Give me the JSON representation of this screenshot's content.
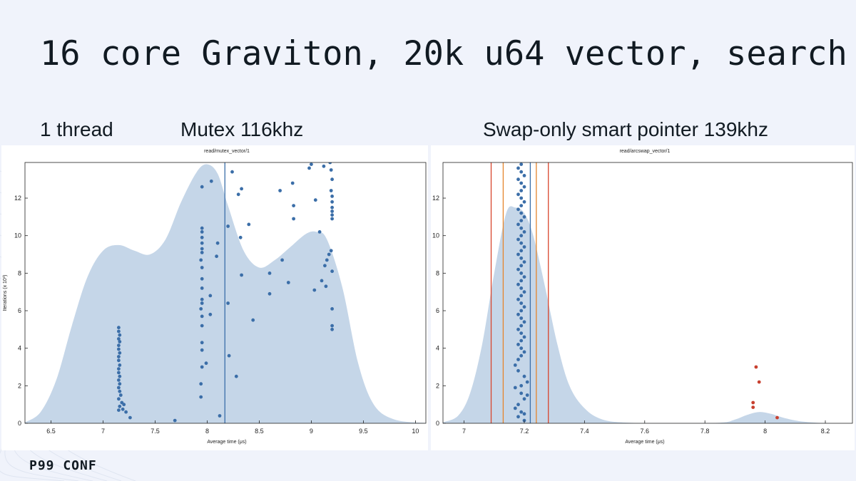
{
  "slide": {
    "title": "16 core Graviton, 20k u64 vector, search",
    "label_threads": "1 thread",
    "label_mutex": "Mutex 116khz",
    "label_swap": "Swap-only smart pointer 139khz",
    "logo": "P99 CONF"
  },
  "colors": {
    "kde_fill": "#c5d6e8",
    "point": "#3b6ea8",
    "outlier": "#c8402f",
    "mean_line": "#3b6ea8",
    "severe_fence": "#d9442c",
    "mild_fence": "#e5852c"
  },
  "chart_data": [
    {
      "type": "scatter",
      "title": "read/mutex_vector/1",
      "xlabel": "Average time (μs)",
      "ylabel": "Iterations (x 10³)",
      "xlim": [
        6.25,
        10.1
      ],
      "ylim": [
        0,
        13.9
      ],
      "xticks": [
        "6.5",
        "7",
        "7.5",
        "8",
        "8.5",
        "9",
        "9.5",
        "10"
      ],
      "xtick_values": [
        6.5,
        7,
        7.5,
        8,
        8.5,
        9,
        9.5,
        10
      ],
      "yticks": [
        "0",
        "2",
        "4",
        "6",
        "8",
        "10",
        "12"
      ],
      "ytick_values": [
        0,
        2,
        4,
        6,
        8,
        10,
        12
      ],
      "kde": {
        "x": [
          6.25,
          6.4,
          6.55,
          6.7,
          6.85,
          7.0,
          7.15,
          7.3,
          7.45,
          7.6,
          7.75,
          7.9,
          8.0,
          8.1,
          8.2,
          8.35,
          8.5,
          8.65,
          8.8,
          8.95,
          9.05,
          9.15,
          9.3,
          9.45,
          9.6,
          9.8,
          10.1
        ],
        "y": [
          0.05,
          0.6,
          2.3,
          5.2,
          7.8,
          9.2,
          9.5,
          9.2,
          9.0,
          9.8,
          11.8,
          13.4,
          13.8,
          13.3,
          11.6,
          9.2,
          8.3,
          8.7,
          9.4,
          10.1,
          10.2,
          9.8,
          7.2,
          3.2,
          1.0,
          0.2,
          0.02
        ]
      },
      "mean_line": 8.17,
      "points": [
        [
          7.15,
          5.1
        ],
        [
          7.15,
          4.9
        ],
        [
          7.16,
          4.7
        ],
        [
          7.15,
          4.5
        ],
        [
          7.16,
          4.35
        ],
        [
          7.15,
          4.15
        ],
        [
          7.15,
          3.95
        ],
        [
          7.16,
          3.75
        ],
        [
          7.15,
          3.55
        ],
        [
          7.15,
          3.35
        ],
        [
          7.16,
          3.1
        ],
        [
          7.15,
          2.9
        ],
        [
          7.15,
          2.7
        ],
        [
          7.16,
          2.5
        ],
        [
          7.15,
          2.3
        ],
        [
          7.16,
          2.1
        ],
        [
          7.15,
          1.9
        ],
        [
          7.16,
          1.7
        ],
        [
          7.17,
          1.5
        ],
        [
          7.15,
          1.3
        ],
        [
          7.18,
          1.1
        ],
        [
          7.16,
          0.9
        ],
        [
          7.19,
          0.75
        ],
        [
          7.2,
          1.0
        ],
        [
          7.22,
          0.6
        ],
        [
          7.26,
          0.3
        ],
        [
          7.15,
          0.7
        ],
        [
          7.69,
          0.15
        ],
        [
          7.95,
          10.4
        ],
        [
          7.95,
          10.2
        ],
        [
          7.95,
          9.9
        ],
        [
          7.95,
          9.6
        ],
        [
          7.95,
          9.3
        ],
        [
          7.95,
          9.1
        ],
        [
          7.94,
          8.7
        ],
        [
          7.95,
          8.3
        ],
        [
          7.95,
          7.7
        ],
        [
          7.95,
          7.2
        ],
        [
          7.95,
          6.6
        ],
        [
          7.95,
          6.4
        ],
        [
          7.94,
          6.1
        ],
        [
          7.95,
          5.7
        ],
        [
          7.95,
          5.2
        ],
        [
          7.95,
          4.3
        ],
        [
          7.95,
          3.9
        ],
        [
          7.95,
          3.0
        ],
        [
          7.94,
          2.1
        ],
        [
          7.94,
          1.4
        ],
        [
          7.95,
          12.6
        ],
        [
          7.99,
          3.2
        ],
        [
          8.03,
          6.8
        ],
        [
          8.03,
          5.8
        ],
        [
          8.04,
          12.9
        ],
        [
          8.09,
          8.9
        ],
        [
          8.1,
          9.6
        ],
        [
          8.12,
          0.4
        ],
        [
          8.2,
          6.4
        ],
        [
          8.2,
          10.5
        ],
        [
          8.21,
          3.6
        ],
        [
          8.24,
          13.4
        ],
        [
          8.28,
          2.5
        ],
        [
          8.3,
          12.2
        ],
        [
          8.32,
          9.9
        ],
        [
          8.33,
          12.5
        ],
        [
          8.33,
          7.9
        ],
        [
          8.4,
          10.6
        ],
        [
          8.44,
          5.5
        ],
        [
          8.6,
          8.0
        ],
        [
          8.6,
          6.9
        ],
        [
          8.7,
          12.4
        ],
        [
          8.72,
          8.7
        ],
        [
          8.78,
          7.5
        ],
        [
          8.82,
          12.8
        ],
        [
          8.83,
          11.6
        ],
        [
          8.83,
          10.9
        ],
        [
          8.98,
          13.6
        ],
        [
          9.0,
          13.8
        ],
        [
          9.03,
          7.1
        ],
        [
          9.04,
          11.9
        ],
        [
          9.08,
          10.2
        ],
        [
          9.1,
          7.6
        ],
        [
          9.12,
          13.7
        ],
        [
          9.13,
          8.4
        ],
        [
          9.14,
          7.3
        ],
        [
          9.15,
          8.7
        ],
        [
          9.17,
          9.0
        ],
        [
          9.18,
          13.9
        ],
        [
          9.19,
          13.5
        ],
        [
          9.2,
          13.0
        ],
        [
          9.2,
          12.1
        ],
        [
          9.2,
          11.8
        ],
        [
          9.2,
          11.5
        ],
        [
          9.2,
          11.3
        ],
        [
          9.2,
          11.1
        ],
        [
          9.2,
          10.9
        ],
        [
          9.19,
          9.2
        ],
        [
          9.2,
          8.1
        ],
        [
          9.2,
          6.1
        ],
        [
          9.2,
          5.2
        ],
        [
          9.2,
          5.0
        ],
        [
          9.19,
          12.4
        ]
      ]
    },
    {
      "type": "scatter",
      "title": "read/arcswap_vector/1",
      "xlabel": "Average time (μs)",
      "ylabel": "",
      "xlim": [
        6.93,
        8.29
      ],
      "ylim": [
        0,
        13.9
      ],
      "xticks": [
        "7",
        "7.2",
        "7.4",
        "7.6",
        "7.8",
        "8",
        "8.2"
      ],
      "xtick_values": [
        7.0,
        7.2,
        7.4,
        7.6,
        7.8,
        8.0,
        8.2
      ],
      "yticks": [
        "0",
        "2",
        "4",
        "6",
        "8",
        "10",
        "12"
      ],
      "ytick_values": [
        0,
        2,
        4,
        6,
        8,
        10,
        12
      ],
      "kde": {
        "x": [
          6.93,
          6.98,
          7.02,
          7.06,
          7.1,
          7.14,
          7.17,
          7.2,
          7.23,
          7.27,
          7.31,
          7.35,
          7.4,
          7.46,
          7.55,
          7.7,
          7.85,
          7.9,
          7.94,
          7.98,
          8.02,
          8.06,
          8.12,
          8.2,
          8.29
        ],
        "y": [
          0.05,
          0.4,
          1.6,
          4.2,
          8.0,
          11.2,
          11.5,
          11.2,
          10.0,
          7.2,
          4.2,
          2.0,
          0.8,
          0.2,
          0.03,
          0.01,
          0.03,
          0.2,
          0.45,
          0.6,
          0.5,
          0.3,
          0.1,
          0.01,
          0.0
        ]
      },
      "fences_severe": [
        7.09,
        7.28
      ],
      "fences_mild": [
        7.13,
        7.24
      ],
      "mean_line": 7.22,
      "points_main_x": [
        7.19,
        7.18,
        7.19,
        7.2,
        7.18,
        7.19,
        7.2,
        7.19,
        7.18,
        7.19,
        7.2,
        7.19,
        7.18,
        7.19,
        7.2,
        7.19,
        7.18,
        7.19,
        7.2,
        7.19,
        7.18,
        7.19,
        7.2,
        7.19,
        7.18,
        7.19,
        7.2,
        7.19,
        7.18,
        7.19,
        7.2,
        7.19,
        7.18,
        7.19,
        7.2,
        7.19,
        7.18,
        7.19,
        7.2,
        7.19,
        7.18,
        7.19,
        7.2,
        7.19,
        7.18,
        7.19,
        7.2,
        7.19,
        7.18,
        7.19,
        7.2,
        7.19,
        7.18,
        7.17,
        7.18,
        7.2,
        7.21,
        7.17,
        7.19,
        7.2,
        7.18,
        7.17,
        7.19,
        7.2,
        7.18,
        7.19,
        7.21,
        7.2
      ],
      "points_main_y": [
        13.8,
        13.6,
        13.4,
        13.2,
        13.0,
        12.8,
        12.6,
        12.4,
        12.2,
        12.0,
        11.8,
        11.6,
        11.4,
        11.2,
        11.0,
        10.8,
        10.6,
        10.4,
        10.2,
        10.0,
        9.8,
        9.6,
        9.4,
        9.2,
        9.0,
        8.8,
        8.6,
        8.4,
        8.2,
        8.0,
        7.8,
        7.6,
        7.4,
        7.2,
        7.0,
        6.8,
        6.6,
        6.4,
        6.2,
        6.0,
        5.8,
        5.6,
        5.4,
        5.2,
        5.0,
        4.8,
        4.6,
        4.4,
        4.2,
        4.0,
        3.8,
        3.6,
        3.4,
        3.1,
        2.8,
        2.5,
        2.2,
        1.9,
        1.6,
        1.3,
        1.0,
        0.8,
        0.6,
        0.5,
        0.35,
        2.0,
        1.5,
        0.15
      ],
      "outliers": [
        [
          7.97,
          3.0
        ],
        [
          7.98,
          2.2
        ],
        [
          7.96,
          1.1
        ],
        [
          7.96,
          0.85
        ],
        [
          8.04,
          0.3
        ]
      ]
    }
  ]
}
